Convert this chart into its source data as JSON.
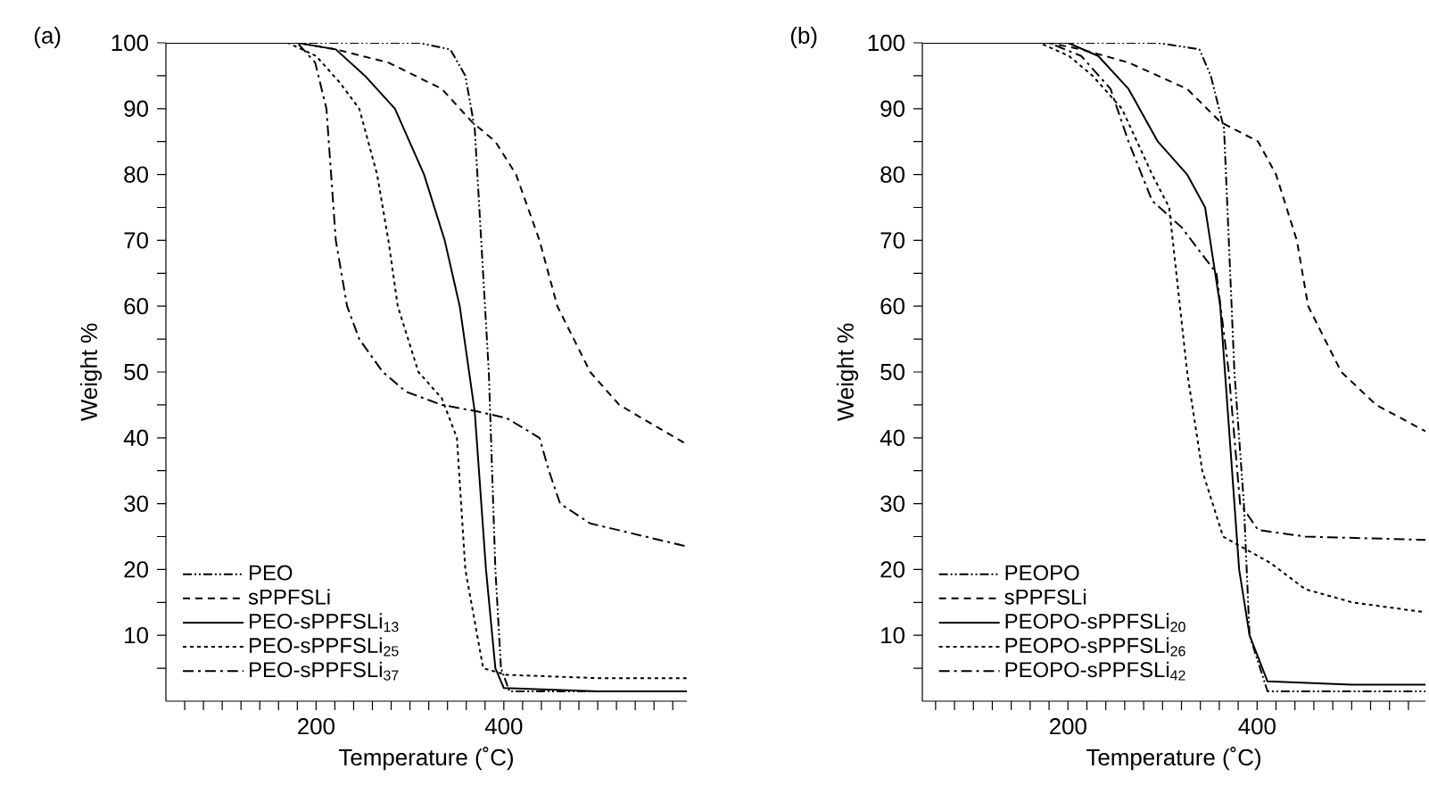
{
  "chart_data": [
    {
      "type": "line",
      "title": "(a)",
      "xlabel": "Temperature (˚C)",
      "ylabel": "Weight %",
      "xlim": [
        40,
        595
      ],
      "ylim": [
        0,
        100
      ],
      "xticks": [
        {
          "value": 60,
          "label": null
        },
        {
          "value": 80,
          "label": null
        },
        {
          "value": 100,
          "label": null
        },
        {
          "value": 120,
          "label": null
        },
        {
          "value": 140,
          "label": null
        },
        {
          "value": 160,
          "label": null
        },
        {
          "value": 180,
          "label": null
        },
        200,
        {
          "value": 220,
          "label": null
        },
        {
          "value": 240,
          "label": null
        },
        {
          "value": 260,
          "label": null
        },
        {
          "value": 280,
          "label": null
        },
        {
          "value": 300,
          "label": null
        },
        {
          "value": 320,
          "label": null
        },
        {
          "value": 340,
          "label": null
        },
        {
          "value": 360,
          "label": null
        },
        {
          "value": 380,
          "label": null
        },
        400,
        {
          "value": 420,
          "label": null
        },
        {
          "value": 440,
          "label": null
        },
        {
          "value": 460,
          "label": null
        },
        {
          "value": 480,
          "label": null
        },
        {
          "value": 500,
          "label": null
        },
        {
          "value": 520,
          "label": null
        },
        {
          "value": 540,
          "label": null
        },
        {
          "value": 560,
          "label": null
        },
        {
          "value": 580,
          "label": null
        }
      ],
      "yticks": [
        {
          "value": 5,
          "label": null
        },
        10,
        {
          "value": 15,
          "label": null
        },
        20,
        {
          "value": 25,
          "label": null
        },
        30,
        {
          "value": 35,
          "label": null
        },
        40,
        {
          "value": 45,
          "label": null
        },
        50,
        {
          "value": 55,
          "label": null
        },
        60,
        {
          "value": 65,
          "label": null
        },
        70,
        {
          "value": 75,
          "label": null
        },
        80,
        {
          "value": 85,
          "label": null
        },
        90,
        {
          "value": 95,
          "label": null
        },
        100
      ],
      "grid": false,
      "legend": "bottom left",
      "series": [
        {
          "name": "PEO",
          "color": "#000000",
          "line_style": "dashdotdotted",
          "x": [
            40,
            200,
            309,
            343,
            359,
            369,
            384,
            391,
            397,
            406,
            500,
            595
          ],
          "values": [
            100,
            100,
            100,
            99,
            95,
            87,
            50,
            20,
            5,
            1.5,
            1.5,
            1.5
          ]
        },
        {
          "name": "sPPFSLi",
          "color": "#000000",
          "line_style": "dashed",
          "x": [
            40,
            180,
            221,
            277,
            334,
            366,
            391,
            413,
            438,
            457,
            492,
            523,
            595
          ],
          "values": [
            100,
            100,
            99,
            97,
            93,
            88,
            85,
            80,
            70,
            60,
            50,
            45,
            39
          ]
        },
        {
          "name": "PEO-sPPFSLi$_{13}$",
          "color": "#000000",
          "line_style": "solid",
          "x": [
            40,
            180,
            221,
            252,
            284,
            315,
            337,
            353,
            369,
            381,
            391,
            400,
            500,
            595
          ],
          "values": [
            100,
            100,
            99,
            95,
            90,
            80,
            70,
            60,
            44,
            20,
            5,
            2,
            1.5,
            1.5
          ]
        },
        {
          "name": "PEO-sPPFSLi$_{25}$",
          "color": "#000000",
          "line_style": "dotted",
          "x": [
            40,
            170,
            200,
            225,
            246,
            265,
            277,
            287,
            309,
            334,
            350,
            359,
            378,
            403,
            500,
            595
          ],
          "values": [
            100,
            100,
            98,
            94,
            90,
            80,
            70,
            60,
            50,
            46,
            40,
            20,
            5,
            4,
            3.5,
            3.5
          ]
        },
        {
          "name": "PEO-sPPFSLi$_{37}$",
          "color": "#000000",
          "line_style": "dashdotted",
          "x": [
            40,
            180,
            199,
            211,
            221,
            233,
            246,
            271,
            296,
            334,
            372,
            403,
            438,
            448,
            460,
            492,
            595
          ],
          "values": [
            100,
            100,
            97,
            90,
            70,
            60,
            55,
            50,
            47,
            45,
            44,
            43,
            40,
            35,
            30,
            27,
            23.5
          ]
        }
      ]
    },
    {
      "type": "line",
      "title": "(b)",
      "xlabel": "Temperature (˚C)",
      "ylabel": "Weight %",
      "xlim": [
        46,
        578
      ],
      "ylim": [
        0,
        100
      ],
      "xticks": [
        {
          "value": 60,
          "label": null
        },
        {
          "value": 80,
          "label": null
        },
        {
          "value": 100,
          "label": null
        },
        {
          "value": 120,
          "label": null
        },
        {
          "value": 140,
          "label": null
        },
        {
          "value": 160,
          "label": null
        },
        {
          "value": 180,
          "label": null
        },
        200,
        {
          "value": 220,
          "label": null
        },
        {
          "value": 240,
          "label": null
        },
        {
          "value": 260,
          "label": null
        },
        {
          "value": 280,
          "label": null
        },
        {
          "value": 300,
          "label": null
        },
        {
          "value": 320,
          "label": null
        },
        {
          "value": 340,
          "label": null
        },
        {
          "value": 360,
          "label": null
        },
        {
          "value": 380,
          "label": null
        },
        400,
        {
          "value": 420,
          "label": null
        },
        {
          "value": 440,
          "label": null
        },
        {
          "value": 460,
          "label": null
        },
        {
          "value": 480,
          "label": null
        },
        {
          "value": 500,
          "label": null
        },
        {
          "value": 520,
          "label": null
        },
        {
          "value": 540,
          "label": null
        },
        {
          "value": 560,
          "label": null
        }
      ],
      "yticks": [
        {
          "value": 5,
          "label": null
        },
        10,
        {
          "value": 15,
          "label": null
        },
        20,
        {
          "value": 25,
          "label": null
        },
        30,
        {
          "value": 35,
          "label": null
        },
        40,
        {
          "value": 45,
          "label": null
        },
        50,
        {
          "value": 55,
          "label": null
        },
        60,
        {
          "value": 65,
          "label": null
        },
        70,
        {
          "value": 75,
          "label": null
        },
        80,
        {
          "value": 85,
          "label": null
        },
        90,
        {
          "value": 95,
          "label": null
        },
        100
      ],
      "grid": false,
      "legend": "bottom left",
      "series": [
        {
          "name": "PEOPO",
          "color": "#000000",
          "line_style": "dashdotdotted",
          "x": [
            46,
            200,
            295,
            339,
            351,
            365,
            376,
            386,
            392,
            411,
            500,
            578
          ],
          "values": [
            100,
            100,
            100,
            99,
            95,
            87,
            50,
            30,
            10,
            1.5,
            1.5,
            1.5
          ]
        },
        {
          "name": "sPPFSLi",
          "color": "#000000",
          "line_style": "dashed",
          "x": [
            46,
            180,
            214,
            264,
            326,
            361,
            401,
            420,
            442,
            454,
            489,
            526,
            578
          ],
          "values": [
            100,
            100,
            99,
            97,
            93,
            88,
            85,
            80,
            70,
            60,
            50,
            45,
            41
          ]
        },
        {
          "name": "PEOPO-sPPFSLi$_{20}$",
          "color": "#000000",
          "line_style": "solid",
          "x": [
            46,
            200,
            232,
            264,
            295,
            326,
            345,
            361,
            381,
            392,
            411,
            500,
            578
          ],
          "values": [
            100,
            100,
            98,
            93,
            85,
            80,
            75,
            60,
            20,
            10,
            3,
            2.5,
            2.5
          ]
        },
        {
          "name": "PEOPO-sPPFSLi$_{26}$",
          "color": "#000000",
          "line_style": "dotted",
          "x": [
            46,
            170,
            201,
            226,
            257,
            289,
            307,
            326,
            342,
            364,
            389,
            414,
            451,
            501,
            578
          ],
          "values": [
            100,
            100,
            98,
            95,
            90,
            80,
            75,
            50,
            35,
            25,
            23,
            21,
            17,
            15,
            13.5
          ]
        },
        {
          "name": "PEOPO-sPPFSLi$_{42}$",
          "color": "#000000",
          "line_style": "dashdotted",
          "x": [
            46,
            180,
            214,
            245,
            264,
            289,
            320,
            357,
            370,
            382,
            401,
            451,
            578
          ],
          "values": [
            100,
            100,
            98,
            93,
            85,
            76,
            72,
            65,
            50,
            30,
            26,
            25,
            24.5
          ]
        }
      ]
    }
  ]
}
